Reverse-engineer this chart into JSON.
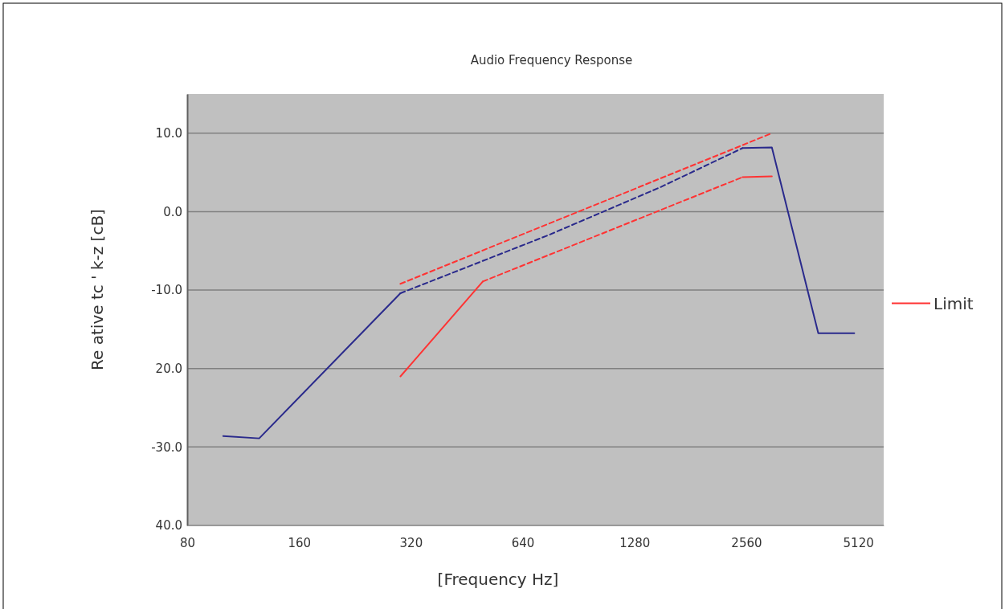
{
  "chart_data": {
    "type": "line",
    "title": "Audio Frequency Response",
    "xlabel": "[Frequency Hz]",
    "ylabel": "Re ative tc ' k-z [cB]",
    "log": "x",
    "grid": "y",
    "legend": "right",
    "xlim": [
      80,
      6000
    ],
    "xticks": [
      80,
      160,
      320,
      640,
      1280,
      2560,
      5120
    ],
    "ylim": [
      -40,
      15
    ],
    "yticks": [
      {
        "value": 10,
        "label": "10.0"
      },
      {
        "value": 0,
        "label": "0.0"
      },
      {
        "value": -10,
        "label": "-10.0"
      },
      {
        "value": -20,
        "label": "20.0"
      },
      {
        "value": -30,
        "label": "-30.0"
      },
      {
        "value": -40,
        "label": "40.0"
      }
    ],
    "series": [
      {
        "color": "#2a2a8c",
        "line_style": "solid",
        "x": [
          100,
          125,
          300
        ],
        "values": [
          -28.6,
          -28.9,
          -10.4
        ]
      },
      {
        "color": "#2a2a8c",
        "line_style": "dashed",
        "x": [
          300,
          750,
          1500,
          2500
        ],
        "values": [
          -10.4,
          -3.0,
          3.1,
          8.1
        ]
      },
      {
        "color": "#2a2a8c",
        "line_style": "solid",
        "x": [
          2500,
          3000,
          4000,
          5000
        ],
        "values": [
          8.1,
          8.2,
          -15.5,
          -15.5
        ]
      },
      {
        "name": "Limit",
        "color": "#ff3333",
        "line_style": "dashed",
        "x": [
          300,
          3000
        ],
        "values": [
          -9.2,
          10.0
        ]
      },
      {
        "color": "#ff3333",
        "line_style": "solid",
        "x": [
          300,
          500
        ],
        "values": [
          -21,
          -8.9
        ]
      },
      {
        "color": "#ff3333",
        "line_style": "dashed",
        "x": [
          500,
          2500
        ],
        "values": [
          -8.9,
          4.4
        ]
      },
      {
        "color": "#ff3333",
        "line_style": "solid",
        "x": [
          2500,
          3000
        ],
        "values": [
          4.4,
          4.5
        ]
      }
    ]
  }
}
